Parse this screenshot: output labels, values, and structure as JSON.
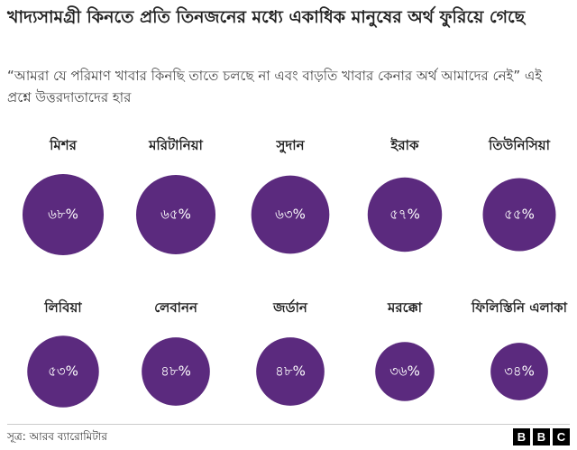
{
  "chart_data": {
    "type": "bubble",
    "title": "খাদ্যসামগ্রী কিনতে প্রতি তিনজনের মধ্যে একাধিক মানুষের অর্থ ফুরিয়ে গেছে",
    "subtitle": "“আমরা যে পরিমাণ খাবার কিনছি তাতে চলছে না এবং বাড়তি খাবার কেনার অর্থ আমাদের নেই” এই প্রশ্নে উত্তরদাতাদের হার",
    "categories": [
      "মিশর",
      "মরিটানিয়া",
      "সুদান",
      "ইরাক",
      "তিউনিসিয়া",
      "লিবিয়া",
      "লেবানন",
      "জর্ডান",
      "মরক্কো",
      "ফিলিস্তিনি এলাকা"
    ],
    "values": [
      68,
      65,
      63,
      57,
      55,
      53,
      48,
      48,
      36,
      34
    ],
    "value_labels": [
      "৬৮%",
      "৬৫%",
      "৬৩%",
      "৫৭%",
      "৫৫%",
      "৫৩%",
      "৪৮%",
      "৪৮%",
      "৩৬%",
      "৩৪%"
    ],
    "color": "#5b2a7e",
    "source": "সূত্র: আরব ব্যারোমিটার",
    "logo": [
      "B",
      "B",
      "C"
    ]
  }
}
